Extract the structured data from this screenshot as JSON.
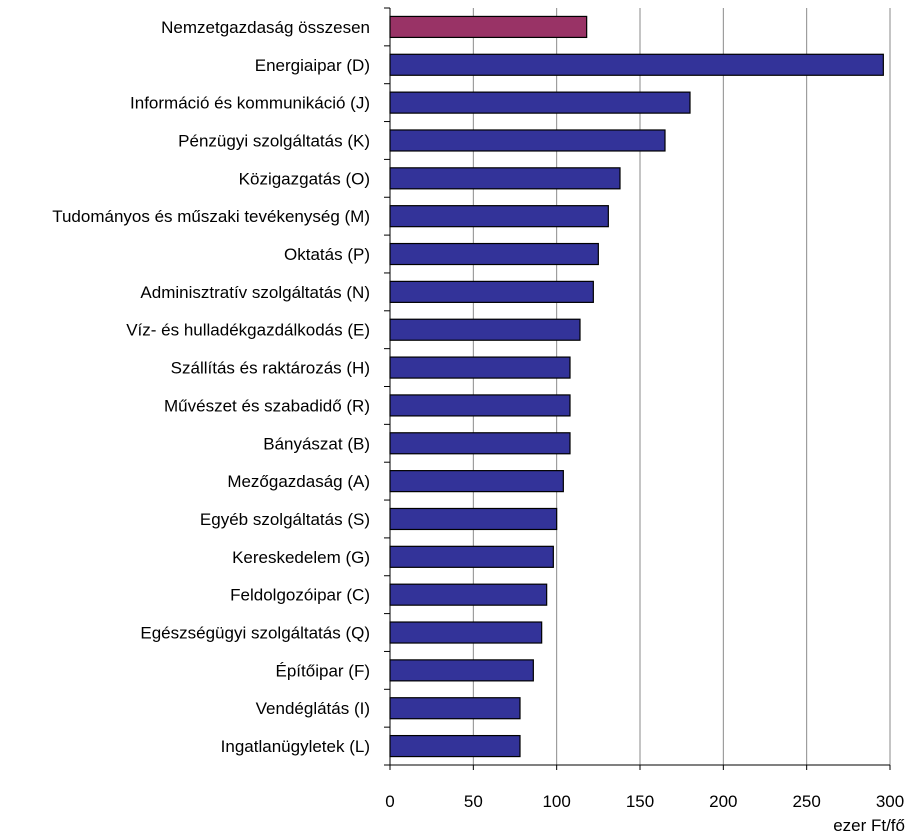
{
  "chart_data": {
    "type": "bar",
    "orientation": "horizontal",
    "title": "",
    "xlabel": "ezer Ft/fő",
    "ylabel": "",
    "xlim": [
      0,
      300
    ],
    "xticks": [
      0,
      50,
      100,
      150,
      200,
      250,
      300
    ],
    "grid": "vertical",
    "legend": "none",
    "colors": {
      "highlight": "#993366",
      "default": "#333399"
    },
    "categories": [
      "Nemzetgazdaság összesen",
      "Energiaipar (D)",
      "Információ és kommunikáció (J)",
      "Pénzügyi szolgáltatás (K)",
      "Közigazgatás (O)",
      "Tudományos és műszaki tevékenység (M)",
      "Oktatás (P)",
      "Adminisztratív szolgáltatás (N)",
      "Víz- és hulladékgazdálkodás (E)",
      "Szállítás és raktározás (H)",
      "Művészet és szabadidő (R)",
      "Bányászat (B)",
      "Mezőgazdaság (A)",
      "Egyéb szolgáltatás (S)",
      "Kereskedelem (G)",
      "Feldolgozóipar (C)",
      "Egészségügyi szolgáltatás (Q)",
      "Építőipar (F)",
      "Vendéglátás (I)",
      "Ingatlanügyletek (L)"
    ],
    "values": [
      118,
      296,
      180,
      165,
      138,
      131,
      125,
      122,
      114,
      108,
      108,
      108,
      104,
      100,
      98,
      94,
      91,
      86,
      78,
      78
    ],
    "highlight_index": 0
  }
}
